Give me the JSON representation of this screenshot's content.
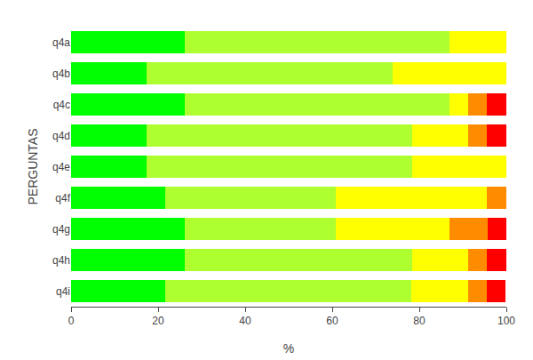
{
  "chart_data": {
    "type": "bar",
    "orientation": "horizontal",
    "stacked": true,
    "xlabel": "%",
    "ylabel": "PERGUNTAS",
    "categories": [
      "q4a",
      "q4b",
      "q4c",
      "q4d",
      "q4e",
      "q4f",
      "q4g",
      "q4h",
      "q4i"
    ],
    "series": [
      {
        "color": "#00FF00",
        "values": [
          26.1,
          17.4,
          26.1,
          17.4,
          17.4,
          21.7,
          26.1,
          26.1,
          21.7
        ]
      },
      {
        "color": "#ADFF2F",
        "values": [
          60.9,
          56.5,
          60.9,
          60.9,
          60.9,
          39.1,
          34.8,
          52.2,
          56.5
        ]
      },
      {
        "color": "#FFFF00",
        "values": [
          13.0,
          26.1,
          4.3,
          13.0,
          21.7,
          34.8,
          26.1,
          13.0,
          13.0
        ]
      },
      {
        "color": "#FF8C00",
        "values": [
          0.0,
          0.0,
          4.3,
          4.3,
          0.0,
          4.3,
          8.7,
          4.3,
          4.3
        ]
      },
      {
        "color": "#FF0000",
        "values": [
          0.0,
          0.0,
          4.3,
          4.3,
          0.0,
          0.0,
          4.3,
          4.3,
          4.3
        ]
      }
    ],
    "xlim": [
      0,
      100
    ],
    "xticks": [
      0,
      20,
      40,
      60,
      80,
      100
    ],
    "grid": false
  }
}
